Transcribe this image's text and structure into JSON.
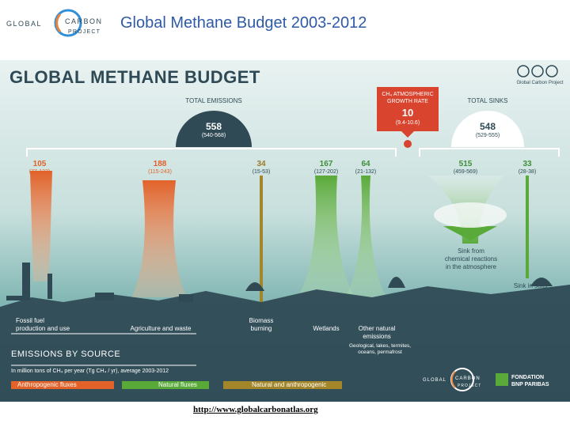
{
  "header": {
    "logo": {
      "word1": "GLOBAL",
      "word2": "CARBON",
      "word3": "PROJECT"
    },
    "title": "Global Methane Budget 2003-2012"
  },
  "infographic": {
    "title": "GLOBAL METHANE BUDGET",
    "cc_label": "Global Carbon Project",
    "total_emissions": {
      "label": "TOTAL EMISSIONS",
      "value": "558",
      "range": "(540-568)"
    },
    "growth_rate": {
      "label_line1": "CH₄ ATMOSPHERIC",
      "label_line2": "GROWTH RATE",
      "value": "10",
      "range": "(9.4-10.6)"
    },
    "total_sinks": {
      "label": "TOTAL SINKS",
      "value": "548",
      "range": "(529-555)"
    },
    "sources": [
      {
        "value": "105",
        "range": "(77-133)",
        "label_line1": "Fossil fuel",
        "label_line2": "production and use",
        "color": "#e2622a"
      },
      {
        "value": "188",
        "range": "(115-243)",
        "label_line1": "Agriculture and waste",
        "label_line2": "",
        "color": "#e2622a"
      },
      {
        "value": "34",
        "range": "(15-53)",
        "label_line1": "Biomass",
        "label_line2": "burning",
        "color": "#a4862a"
      },
      {
        "value": "167",
        "range": "(127-202)",
        "label_line1": "Wetlands",
        "label_line2": "",
        "color": "#5aaa3a"
      },
      {
        "value": "64",
        "range": "(21-132)",
        "label_line1": "Other natural",
        "label_line2": "emissions",
        "label_line3": "Geological, lakes, termites,",
        "label_line4": "oceans, permafrost",
        "color": "#5aaa3a"
      }
    ],
    "sinks": [
      {
        "value": "515",
        "range": "(459-569)",
        "label_line1": "Sink from",
        "label_line2": "chemical reactions",
        "label_line3": "in the atmosphere"
      },
      {
        "value": "33",
        "range": "(28-38)",
        "label_line1": "Sink in soils"
      }
    ],
    "legend": {
      "heading": "EMISSIONS BY SOURCE",
      "subheading": "In million tons of CH₄ per year (Tg CH₄ / yr), average 2003-2012",
      "items": [
        {
          "label": "Anthropogenic fluxes",
          "color": "#e2622a"
        },
        {
          "label": "Natural fluxes",
          "color": "#5aaa3a"
        },
        {
          "label": "Natural and anthropogenic",
          "color": "#a4862a"
        }
      ]
    },
    "footer_logos": {
      "gcp": {
        "word1": "GLOBAL",
        "word2": "CARBON",
        "word3": "PROJECT"
      },
      "bnp": {
        "line1": "FONDATION",
        "line2": "BNP PARIBAS"
      }
    }
  },
  "link": "http://www.globalcarbonatlas.org"
}
